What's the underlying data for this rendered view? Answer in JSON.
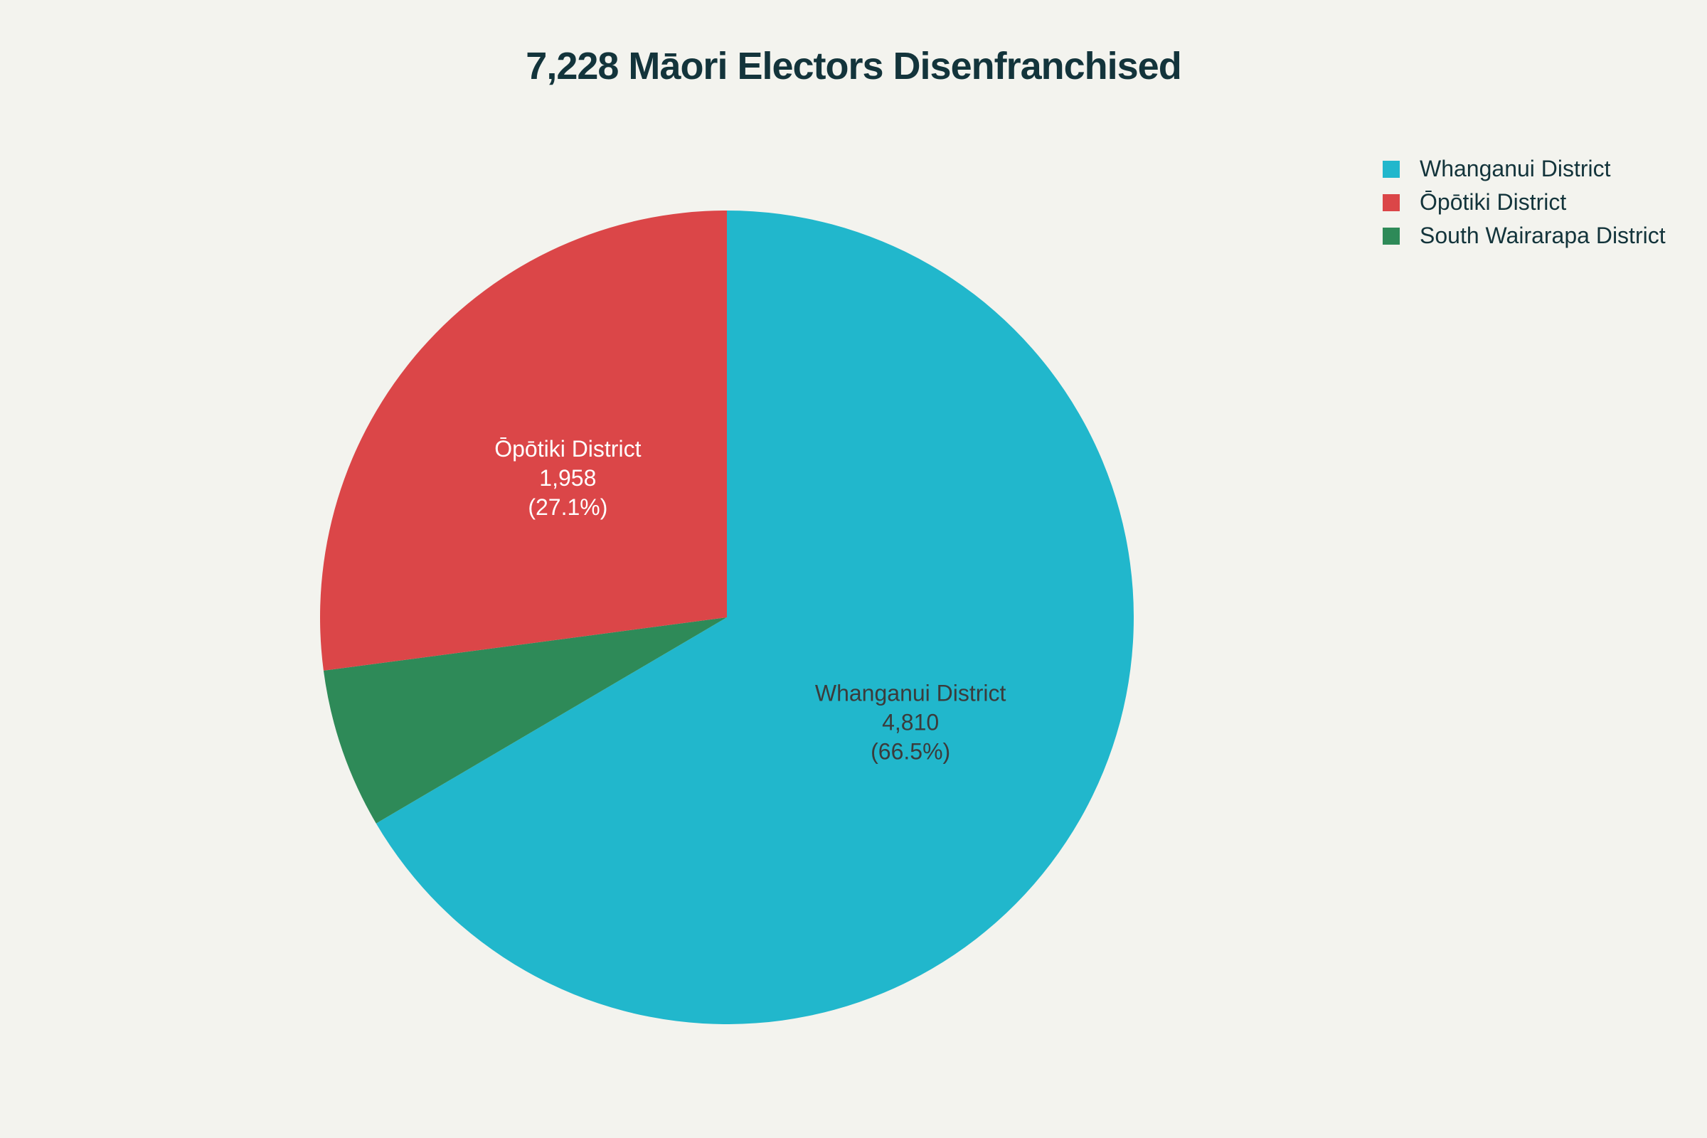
{
  "chart_data": {
    "type": "pie",
    "title": "7,228 Māori Electors Disenfranchised",
    "slices": [
      {
        "label": "Whanganui District",
        "value": 4810,
        "value_text": "4,810",
        "percent_text": "(66.5%)",
        "color": "#21b7cc",
        "text_color": "#3b3b3b"
      },
      {
        "label": "South Wairarapa District",
        "value": 460,
        "value_text": "460",
        "percent_text": "(6.4%)",
        "color": "#2e8a58",
        "text_color": "#ffffff"
      },
      {
        "label": "Ōpōtiki District",
        "value": 1958,
        "value_text": "1,958",
        "percent_text": "(27.1%)",
        "color": "#db4648",
        "text_color": "#ffffff"
      }
    ],
    "legend": [
      {
        "label": "Whanganui District",
        "color": "#21b7cc"
      },
      {
        "label": "Ōpōtiki District",
        "color": "#db4648"
      },
      {
        "label": "South Wairarapa District",
        "color": "#2e8a58"
      }
    ],
    "legend_position": "top-right"
  }
}
